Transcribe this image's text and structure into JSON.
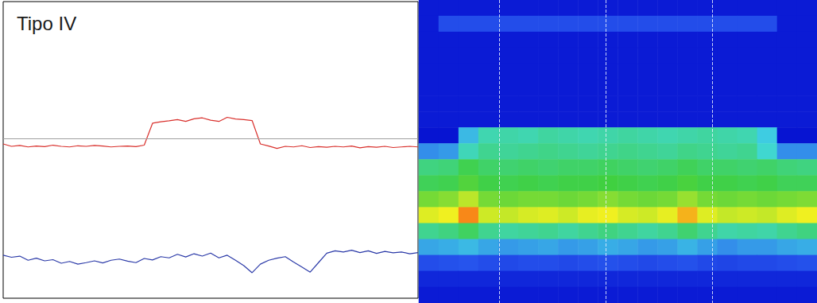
{
  "chart_data": [
    {
      "type": "line",
      "title": "Tipo IV",
      "x": [
        0,
        2,
        4,
        6,
        8,
        10,
        12,
        14,
        16,
        18,
        20,
        22,
        24,
        26,
        28,
        30,
        32,
        34,
        36,
        38,
        40,
        42,
        44,
        46,
        48,
        50,
        52,
        54,
        56,
        58,
        60,
        62,
        64,
        66,
        68,
        70,
        72,
        74,
        76,
        78,
        80,
        82,
        84,
        86,
        88,
        90,
        92,
        94,
        96,
        98,
        100
      ],
      "series": [
        {
          "color": "#d9302c",
          "values": [
            52.0,
            51.2,
            51.5,
            51.0,
            51.3,
            51.1,
            51.6,
            51.2,
            51.0,
            51.4,
            51.2,
            51.5,
            51.3,
            51.0,
            51.2,
            51.3,
            51.1,
            51.6,
            59.0,
            59.5,
            59.8,
            60.2,
            59.6,
            60.5,
            60.8,
            60.0,
            59.6,
            61.0,
            60.4,
            60.2,
            59.9,
            52.0,
            51.3,
            50.5,
            51.2,
            51.0,
            51.4,
            50.8,
            51.1,
            50.9,
            51.2,
            51.0,
            51.3,
            50.7,
            51.1,
            50.9,
            51.2,
            50.8,
            51.0,
            51.2,
            51.0
          ]
        },
        {
          "color": "#2b3aa8",
          "values": [
            14.5,
            13.8,
            14.2,
            12.8,
            13.5,
            12.6,
            13.0,
            11.8,
            12.4,
            11.5,
            12.0,
            12.6,
            11.9,
            12.8,
            13.2,
            12.5,
            12.0,
            13.4,
            12.9,
            14.0,
            13.6,
            14.8,
            13.9,
            15.0,
            14.2,
            15.2,
            13.6,
            14.5,
            12.8,
            11.0,
            8.6,
            11.5,
            12.8,
            13.5,
            14.0,
            12.2,
            10.5,
            8.8,
            12.0,
            15.2,
            16.0,
            15.6,
            16.2,
            15.4,
            16.0,
            15.1,
            15.8,
            15.3,
            15.6,
            15.0,
            15.4
          ]
        }
      ],
      "reference_line": {
        "value": 53.8,
        "color": "#a0a0a0"
      },
      "xlim": [
        0,
        100
      ],
      "ylim": [
        0,
        100
      ],
      "tick_labels": false,
      "grid": false
    },
    {
      "type": "heatmap",
      "cells": [
        [
          3,
          3,
          3,
          3,
          3,
          3,
          3,
          3,
          3,
          3,
          3,
          3,
          3,
          3,
          3,
          3,
          3,
          3,
          3,
          3
        ],
        [
          3,
          16,
          16,
          16,
          16,
          16,
          16,
          16,
          16,
          16,
          16,
          16,
          16,
          16,
          16,
          16,
          16,
          16,
          3,
          3
        ],
        [
          3,
          3,
          3,
          3,
          3,
          3,
          3,
          3,
          3,
          3,
          3,
          3,
          3,
          3,
          3,
          3,
          3,
          3,
          3,
          3
        ],
        [
          3,
          3,
          3,
          3,
          3,
          3,
          3,
          3,
          3,
          3,
          3,
          3,
          3,
          3,
          3,
          3,
          3,
          3,
          3,
          3
        ],
        [
          3,
          3,
          3,
          3,
          3,
          3,
          3,
          3,
          3,
          3,
          3,
          3,
          3,
          3,
          3,
          3,
          3,
          3,
          3,
          3
        ],
        [
          3,
          3,
          3,
          3,
          3,
          3,
          3,
          3,
          3,
          3,
          3,
          3,
          3,
          3,
          3,
          3,
          3,
          3,
          3,
          3
        ],
        [
          3,
          3,
          3,
          3,
          3,
          3,
          3,
          3,
          3,
          3,
          3,
          3,
          3,
          3,
          3,
          3,
          3,
          3,
          3,
          3
        ],
        [
          3,
          3,
          3,
          3,
          3,
          3,
          3,
          3,
          3,
          3,
          3,
          3,
          3,
          3,
          3,
          3,
          3,
          3,
          3,
          3
        ],
        [
          1,
          1,
          35,
          46,
          47,
          46,
          48,
          47,
          46,
          47,
          48,
          47,
          46,
          47,
          48,
          47,
          46,
          38,
          1,
          1
        ],
        [
          28,
          30,
          45,
          50,
          49,
          50,
          51,
          50,
          49,
          50,
          51,
          50,
          49,
          51,
          50,
          49,
          50,
          42,
          28,
          28
        ],
        [
          52,
          53,
          58,
          55,
          54,
          55,
          54,
          55,
          55,
          56,
          55,
          54,
          55,
          57,
          55,
          55,
          54,
          55,
          53,
          52
        ],
        [
          57,
          58,
          62,
          59,
          58,
          59,
          58,
          59,
          59,
          60,
          59,
          58,
          59,
          61,
          59,
          59,
          58,
          59,
          57,
          57
        ],
        [
          66,
          68,
          74,
          66,
          65,
          66,
          66,
          65,
          66,
          68,
          66,
          65,
          66,
          70,
          66,
          65,
          66,
          65,
          66,
          67
        ],
        [
          78,
          80,
          90,
          76,
          75,
          77,
          78,
          76,
          79,
          80,
          77,
          76,
          79,
          86,
          78,
          75,
          76,
          75,
          78,
          80
        ],
        [
          50,
          52,
          56,
          50,
          48,
          49,
          50,
          48,
          50,
          52,
          50,
          48,
          50,
          54,
          50,
          47,
          48,
          47,
          50,
          52
        ],
        [
          32,
          33,
          35,
          32,
          30,
          31,
          32,
          30,
          31,
          33,
          32,
          30,
          31,
          34,
          31,
          28,
          30,
          30,
          32,
          33
        ],
        [
          16,
          17,
          18,
          16,
          15,
          16,
          16,
          15,
          16,
          17,
          16,
          15,
          16,
          17,
          15,
          14,
          15,
          15,
          16,
          17
        ],
        [
          6,
          6,
          6,
          6,
          6,
          6,
          6,
          6,
          6,
          6,
          6,
          6,
          6,
          6,
          6,
          6,
          6,
          6,
          6,
          6
        ],
        [
          3,
          3,
          3,
          3,
          3,
          3,
          3,
          3,
          3,
          3,
          3,
          3,
          3,
          3,
          3,
          3,
          3,
          3,
          3,
          3
        ]
      ],
      "zlim": [
        0,
        100
      ],
      "xlim": [
        0,
        20
      ],
      "ylim": [
        0,
        19
      ],
      "markers_x": [
        4.03,
        9.38,
        14.73
      ],
      "tick_labels": false
    }
  ]
}
